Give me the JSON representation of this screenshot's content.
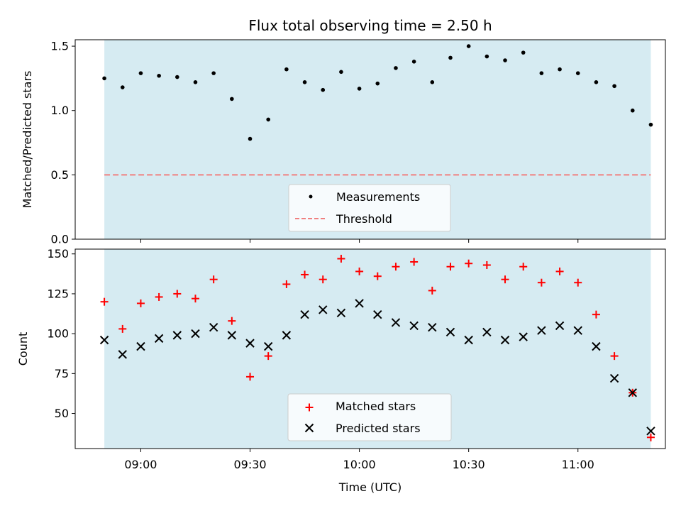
{
  "chart_data": [
    {
      "type": "scatter",
      "title": "Flux total observing time = 2.50 h",
      "ylabel": "Matched/Predicted stars",
      "xlabel": "",
      "ylim": [
        0,
        1.55
      ],
      "yticks": [
        0.0,
        0.5,
        1.0,
        1.5
      ],
      "ytick_labels": [
        "0.0",
        "0.5",
        "1.0",
        "1.5"
      ],
      "shaded_range": [
        "08:50",
        "11:20"
      ],
      "shade_color": "#add8e6",
      "series": [
        {
          "name": "Measurements",
          "marker": "dot",
          "color": "#000000",
          "x": [
            "08:50",
            "08:55",
            "09:00",
            "09:05",
            "09:10",
            "09:15",
            "09:20",
            "09:25",
            "09:30",
            "09:35",
            "09:40",
            "09:45",
            "09:50",
            "09:55",
            "10:00",
            "10:05",
            "10:10",
            "10:15",
            "10:20",
            "10:25",
            "10:30",
            "10:35",
            "10:40",
            "10:45",
            "10:50",
            "10:55",
            "11:00",
            "11:05",
            "11:10",
            "11:15",
            "11:20"
          ],
          "values": [
            1.25,
            1.18,
            1.29,
            1.27,
            1.26,
            1.22,
            1.29,
            1.09,
            0.78,
            0.93,
            1.32,
            1.22,
            1.16,
            1.3,
            1.17,
            1.21,
            1.33,
            1.38,
            1.22,
            1.41,
            1.5,
            1.42,
            1.39,
            1.45,
            1.29,
            1.32,
            1.29,
            1.22,
            1.19,
            1.0,
            0.89
          ]
        }
      ],
      "threshold": {
        "name": "Threshold",
        "value": 0.5,
        "color": "#f08080",
        "style": "dashed"
      },
      "legend_items": [
        "Measurements",
        "Threshold"
      ],
      "legend": "lower-center"
    },
    {
      "type": "scatter",
      "title": "",
      "ylabel": "Count",
      "xlabel": "Time (UTC)",
      "ylim": [
        28,
        153
      ],
      "yticks": [
        50,
        75,
        100,
        125,
        150
      ],
      "ytick_labels": [
        "50",
        "75",
        "100",
        "125",
        "150"
      ],
      "xticks": [
        "09:00",
        "09:30",
        "10:00",
        "10:30",
        "11:00"
      ],
      "xlim": [
        "08:42",
        "11:24"
      ],
      "shaded_range": [
        "08:50",
        "11:20"
      ],
      "series": [
        {
          "name": "Matched stars",
          "marker": "plus",
          "color": "#ff0000",
          "x": [
            "08:50",
            "08:55",
            "09:00",
            "09:05",
            "09:10",
            "09:15",
            "09:20",
            "09:25",
            "09:30",
            "09:35",
            "09:40",
            "09:45",
            "09:50",
            "09:55",
            "10:00",
            "10:05",
            "10:10",
            "10:15",
            "10:20",
            "10:25",
            "10:30",
            "10:35",
            "10:40",
            "10:45",
            "10:50",
            "10:55",
            "11:00",
            "11:05",
            "11:10",
            "11:15",
            "11:20"
          ],
          "values": [
            120,
            103,
            119,
            123,
            125,
            122,
            134,
            108,
            73,
            86,
            131,
            137,
            134,
            147,
            139,
            136,
            142,
            145,
            127,
            142,
            144,
            143,
            134,
            142,
            132,
            139,
            132,
            112,
            86,
            63,
            35
          ]
        },
        {
          "name": "Predicted stars",
          "marker": "x",
          "color": "#000000",
          "x": [
            "08:50",
            "08:55",
            "09:00",
            "09:05",
            "09:10",
            "09:15",
            "09:20",
            "09:25",
            "09:30",
            "09:35",
            "09:40",
            "09:45",
            "09:50",
            "09:55",
            "10:00",
            "10:05",
            "10:10",
            "10:15",
            "10:20",
            "10:25",
            "10:30",
            "10:35",
            "10:40",
            "10:45",
            "10:50",
            "10:55",
            "11:00",
            "11:05",
            "11:10",
            "11:15",
            "11:20"
          ],
          "values": [
            96,
            87,
            92,
            97,
            99,
            100,
            104,
            99,
            94,
            92,
            99,
            112,
            115,
            113,
            119,
            112,
            107,
            105,
            104,
            101,
            96,
            101,
            96,
            98,
            102,
            105,
            102,
            92,
            72,
            63,
            39
          ]
        }
      ],
      "legend_items": [
        "Matched stars",
        "Predicted stars"
      ],
      "legend": "lower-center"
    }
  ]
}
